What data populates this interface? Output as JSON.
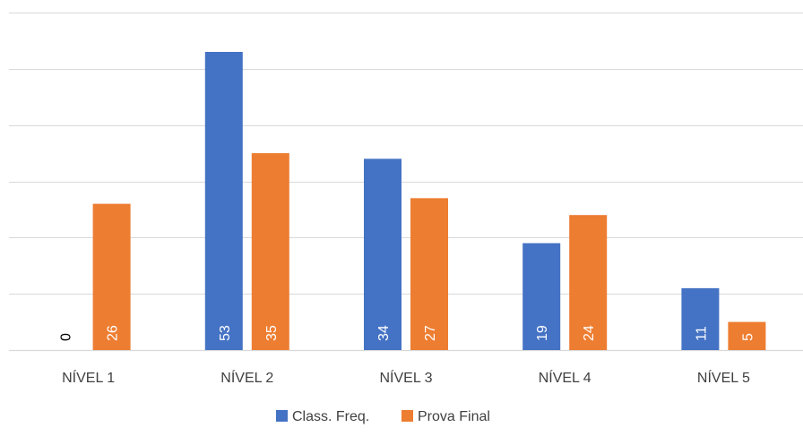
{
  "chart_data": {
    "type": "bar",
    "categories": [
      "NÍVEL 1",
      "NÍVEL 2",
      "NÍVEL 3",
      "NÍVEL 4",
      "NÍVEL 5"
    ],
    "series": [
      {
        "name": "Class. Freq.",
        "values": [
          0,
          53,
          34,
          19,
          11
        ],
        "color": "#4472C4"
      },
      {
        "name": "Prova Final",
        "values": [
          26,
          35,
          27,
          24,
          5
        ],
        "color": "#ED7D31"
      }
    ],
    "ylim": [
      0,
      60
    ],
    "y_gridline_step": 10,
    "gridlines": true,
    "y_tick_labels_visible": false,
    "data_labels": "inside-base-rotated",
    "legend_position": "bottom"
  }
}
